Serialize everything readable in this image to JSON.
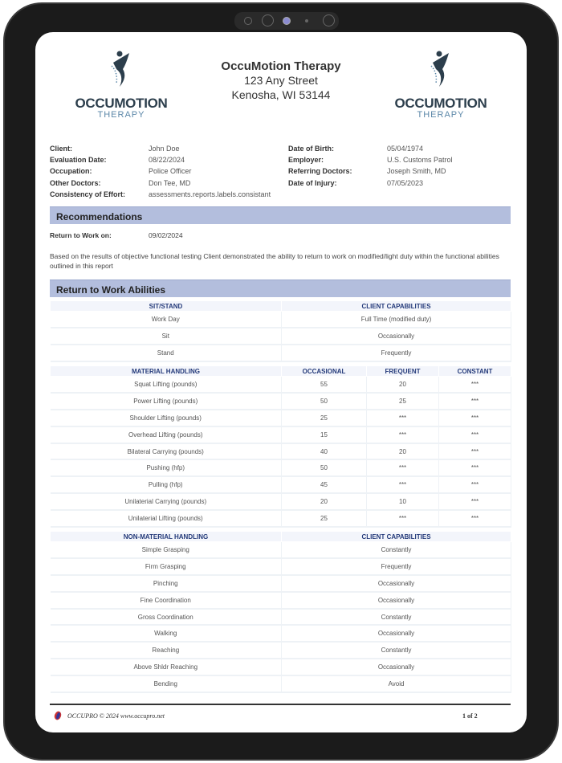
{
  "organization": {
    "name": "OccuMotion Therapy",
    "street": "123 Any Street",
    "city": "Kenosha, WI 53144",
    "logo_text": "OCCUMOTION",
    "logo_subtext": "THERAPY"
  },
  "client_info": {
    "left": [
      {
        "label": "Client:",
        "value": "John  Doe"
      },
      {
        "label": "Evaluation Date:",
        "value": "08/22/2024"
      },
      {
        "label": "Occupation:",
        "value": "Police Officer"
      },
      {
        "label": "Other Doctors:",
        "value": "Don Tee, MD"
      },
      {
        "label": "Consistency of Effort:",
        "value": "assessments.reports.labels.consistant"
      }
    ],
    "right": [
      {
        "label": "Date of Birth:",
        "value": "05/04/1974"
      },
      {
        "label": "Employer:",
        "value": "U.S. Customs Patrol"
      },
      {
        "label": "Referring Doctors:",
        "value": "Joseph Smith, MD"
      },
      {
        "label": "Date of Injury:",
        "value": "07/05/2023"
      }
    ]
  },
  "recommendations": {
    "title": "Recommendations",
    "rtw_label": "Return to Work on:",
    "rtw_date": "09/02/2024",
    "text": "Based on the results of objective functional testing Client demonstrated the ability to return to work on modified/light duty within the functional abilities outlined in this report"
  },
  "abilities": {
    "title": "Return to Work Abilities",
    "sit_stand": {
      "headers": [
        "SIT/STAND",
        "CLIENT CAPABILITIES"
      ],
      "rows": [
        [
          "Work Day",
          "Full Time (modified duty)"
        ],
        [
          "Sit",
          "Occasionally"
        ],
        [
          "Stand",
          "Frequently"
        ]
      ]
    },
    "material": {
      "headers": [
        "MATERIAL HANDLING",
        "OCCASIONAL",
        "FREQUENT",
        "CONSTANT"
      ],
      "rows": [
        [
          "Squat Lifting (pounds)",
          "55",
          "20",
          "***"
        ],
        [
          "Power Lifting (pounds)",
          "50",
          "25",
          "***"
        ],
        [
          "Shoulder Lifting (pounds)",
          "25",
          "***",
          "***"
        ],
        [
          "Overhead Lifting (pounds)",
          "15",
          "***",
          "***"
        ],
        [
          "Bilateral Carrying (pounds)",
          "40",
          "20",
          "***"
        ],
        [
          "Pushing (hfp)",
          "50",
          "***",
          "***"
        ],
        [
          "Pulling (hfp)",
          "45",
          "***",
          "***"
        ],
        [
          "Unilaterial Carrying (pounds)",
          "20",
          "10",
          "***"
        ],
        [
          "Unilaterial Lifting (pounds)",
          "25",
          "***",
          "***"
        ]
      ]
    },
    "non_material": {
      "headers": [
        "NON-MATERIAL HANDLING",
        "CLIENT CAPABILITIES"
      ],
      "rows": [
        [
          "Simple Grasping",
          "Constantly"
        ],
        [
          "Firm Grasping",
          "Frequently"
        ],
        [
          "Pinching",
          "Occasionally"
        ],
        [
          "Fine Coordination",
          "Occasionally"
        ],
        [
          "Gross Coordination",
          "Constantly"
        ],
        [
          "Walking",
          "Occasionally"
        ],
        [
          "Reaching",
          "Constantly"
        ],
        [
          "Above Shldr Reaching",
          "Occasionally"
        ],
        [
          "Bending",
          "Avoid"
        ]
      ]
    }
  },
  "footer": {
    "text": "OCCUPRO © 2024 www.occupro.net",
    "page": "1 of 2"
  },
  "colors": {
    "section_header": "#b3bedd",
    "table_header_text": "#243a7a",
    "logo_dark": "#2c3e4c",
    "logo_light": "#5b87a8"
  }
}
